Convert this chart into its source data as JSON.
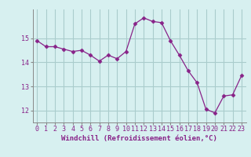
{
  "hours": [
    0,
    1,
    2,
    3,
    4,
    5,
    6,
    7,
    8,
    9,
    10,
    11,
    12,
    13,
    14,
    15,
    16,
    17,
    18,
    19,
    20,
    21,
    22,
    23
  ],
  "values": [
    14.9,
    14.65,
    14.65,
    14.55,
    14.45,
    14.5,
    14.3,
    14.05,
    14.3,
    14.15,
    14.45,
    15.6,
    15.85,
    15.7,
    15.65,
    14.9,
    14.3,
    13.65,
    13.15,
    12.05,
    11.9,
    12.6,
    12.65,
    13.45
  ],
  "line_color": "#882288",
  "marker": "D",
  "marker_size": 2.5,
  "bg_color": "#d7f0f0",
  "grid_color": "#aacccc",
  "xlabel": "Windchill (Refroidissement éolien,°C)",
  "xlim": [
    -0.5,
    23.5
  ],
  "ylim": [
    11.5,
    16.2
  ],
  "yticks": [
    12,
    13,
    14,
    15
  ],
  "xtick_labels": [
    "0",
    "1",
    "2",
    "3",
    "4",
    "5",
    "6",
    "7",
    "8",
    "9",
    "10",
    "11",
    "12",
    "13",
    "14",
    "15",
    "16",
    "17",
    "18",
    "19",
    "20",
    "21",
    "22",
    "23"
  ],
  "xlabel_fontsize": 6.5,
  "tick_fontsize": 6.0
}
